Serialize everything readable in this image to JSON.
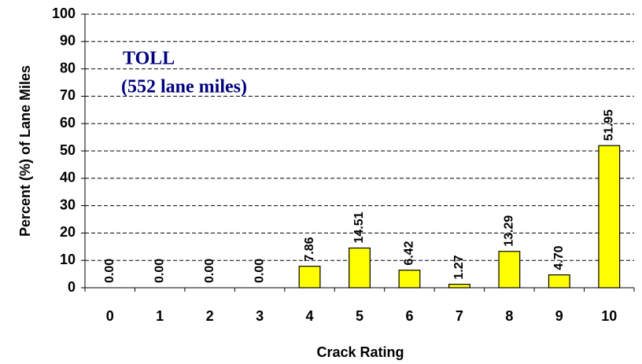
{
  "chart_data": {
    "type": "bar",
    "annotations": [
      "TOLL",
      "(552 lane miles)"
    ],
    "x_label": "Crack Rating",
    "y_label": "Percent (%) of Lane Miles",
    "categories": [
      "0",
      "1",
      "2",
      "3",
      "4",
      "5",
      "6",
      "7",
      "8",
      "9",
      "10"
    ],
    "values": [
      0,
      0,
      0,
      0,
      7.86,
      14.51,
      6.42,
      1.27,
      13.29,
      4.7,
      51.95
    ],
    "value_labels": [
      "0.00",
      "0.00",
      "0.00",
      "0.00",
      "7.86",
      "14.51",
      "6.42",
      "1.27",
      "13.29",
      "4.70",
      "51.95"
    ],
    "color": "#ffff00",
    "ylim": [
      0,
      100
    ],
    "yticks": [
      0,
      10,
      20,
      30,
      40,
      50,
      60,
      70,
      80,
      90,
      100
    ],
    "grid": true
  }
}
